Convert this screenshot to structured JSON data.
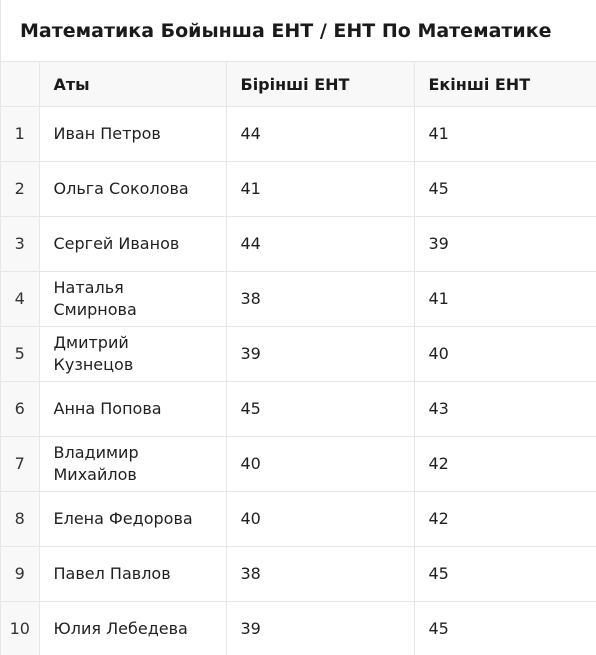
{
  "title": "Математика Бойынша ЕНТ / ЕНТ По Математике",
  "headers": {
    "name": "Аты",
    "first": "Бірінші ЕНТ",
    "second": "Екінші ЕНТ"
  },
  "rows": [
    {
      "num": "1",
      "name": "Иван Петров",
      "first": "44",
      "second": "41"
    },
    {
      "num": "2",
      "name": "Ольга Соколова",
      "first": "41",
      "second": "45"
    },
    {
      "num": "3",
      "name": "Сергей Иванов",
      "first": "44",
      "second": "39"
    },
    {
      "num": "4",
      "name": "Наталья Смирнова",
      "first": "38",
      "second": "41"
    },
    {
      "num": "5",
      "name": "Дмитрий Кузнецов",
      "first": "39",
      "second": "40"
    },
    {
      "num": "6",
      "name": "Анна Попова",
      "first": "45",
      "second": "43"
    },
    {
      "num": "7",
      "name": "Владимир Михайлов",
      "first": "40",
      "second": "42"
    },
    {
      "num": "8",
      "name": "Елена Федорова",
      "first": "40",
      "second": "42"
    },
    {
      "num": "9",
      "name": "Павел Павлов",
      "first": "38",
      "second": "45"
    },
    {
      "num": "10",
      "name": "Юлия Лебедева",
      "first": "39",
      "second": "45"
    }
  ]
}
